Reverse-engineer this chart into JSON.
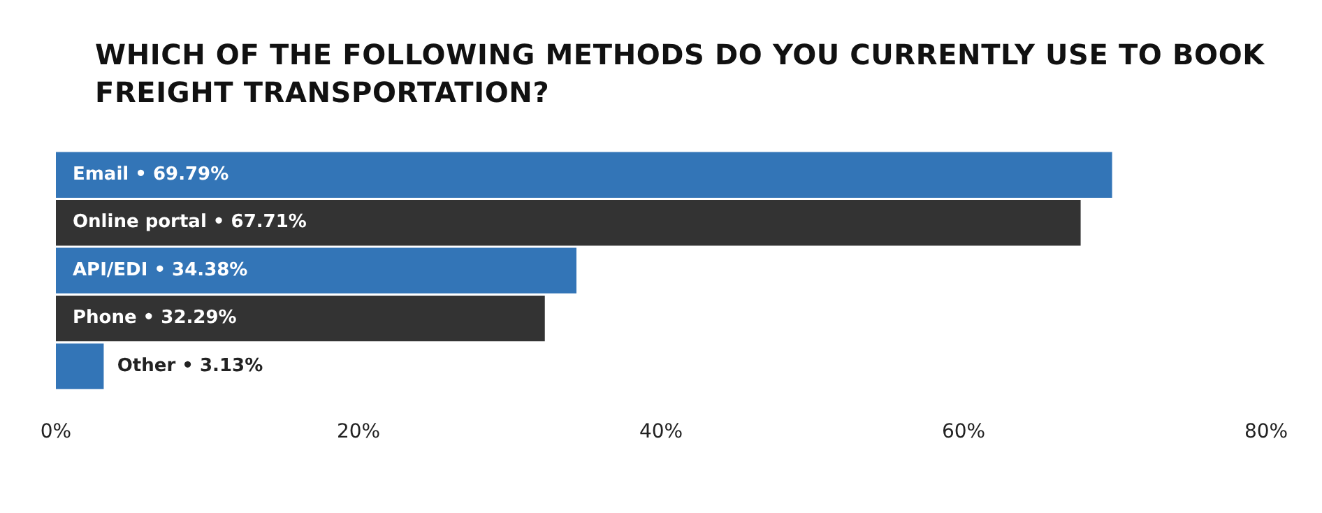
{
  "chart_data": {
    "type": "bar",
    "orientation": "horizontal",
    "title": "WHICH OF THE FOLLOWING METHODS DO YOU CURRENTLY USE TO BOOK FREIGHT TRANSPORTATION?",
    "categories": [
      "Email",
      "Online portal",
      "API/EDI",
      "Phone",
      "Other"
    ],
    "values": [
      69.79,
      67.71,
      34.38,
      32.29,
      3.13
    ],
    "colors": [
      "#3375b7",
      "#333333",
      "#3375b7",
      "#333333",
      "#3375b7"
    ],
    "value_labels": [
      "• 69.79%",
      "• 67.71%",
      "• 34.38%",
      "• 32.29%",
      "• 3.13%"
    ],
    "xlim": [
      0,
      80
    ],
    "xticks": [
      {
        "value": 0,
        "label": "0%"
      },
      {
        "value": 20,
        "label": "20%"
      },
      {
        "value": 40,
        "label": "40%"
      },
      {
        "value": 60,
        "label": "60%"
      },
      {
        "value": 80,
        "label": "80%"
      }
    ],
    "grid": false,
    "legend": false
  }
}
